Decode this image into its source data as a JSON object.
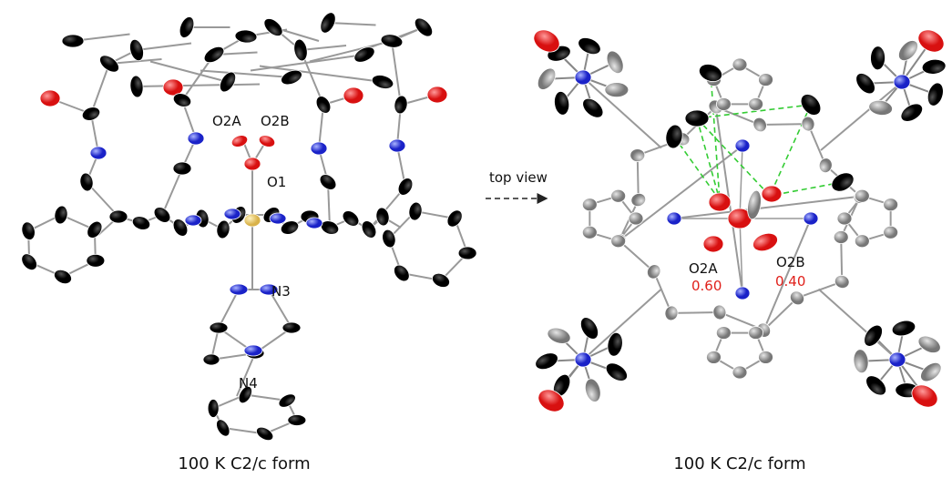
{
  "left_panel": {
    "atom_labels": [
      "O2A",
      "O2B",
      "O1",
      "N3",
      "N4"
    ],
    "caption": "100 K C2/c form"
  },
  "arrow_label": "top view",
  "right_panel": {
    "atom_labels": [
      {
        "label": "O2A",
        "occupancy": "0.60"
      },
      {
        "label": "O2B",
        "occupancy": "0.40"
      }
    ],
    "caption": "100 K C2/c form"
  }
}
